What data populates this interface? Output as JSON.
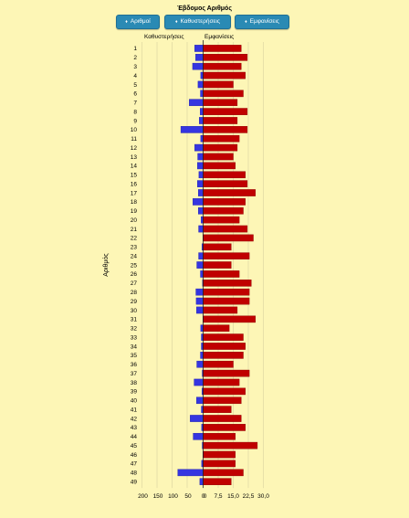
{
  "title": "Έβδομος Αριθμός",
  "buttons": [
    {
      "label": "Αριθμοί",
      "icon": "sort-icon"
    },
    {
      "label": "Καθυστερήσεις",
      "icon": "sort-icon"
    },
    {
      "label": "Εμφανίσεις",
      "icon": "sort-icon"
    }
  ],
  "chart_data": {
    "type": "bar",
    "orientation": "horizontal",
    "title": "Έβδομος Αριθμός",
    "ylabel": "Αριθμός",
    "left_header": "Καθυστερήσεις",
    "right_header": "Εμφανίσεις",
    "categories": [
      "1",
      "2",
      "3",
      "4",
      "5",
      "6",
      "7",
      "8",
      "9",
      "10",
      "11",
      "12",
      "13",
      "14",
      "15",
      "16",
      "17",
      "18",
      "19",
      "20",
      "21",
      "22",
      "23",
      "24",
      "25",
      "26",
      "27",
      "28",
      "29",
      "30",
      "31",
      "32",
      "33",
      "34",
      "35",
      "36",
      "37",
      "38",
      "39",
      "40",
      "41",
      "42",
      "43",
      "44",
      "45",
      "46",
      "47",
      "48",
      "49"
    ],
    "series": [
      {
        "name": "Καθυστερήσεις",
        "color": "#3535e0",
        "values": [
          28,
          25,
          35,
          8,
          17,
          9,
          46,
          10,
          13,
          74,
          8,
          28,
          18,
          19,
          14,
          19,
          16,
          34,
          16,
          7,
          15,
          1,
          4,
          15,
          21,
          9,
          2,
          24,
          23,
          22,
          1,
          8,
          6,
          6,
          9,
          21,
          3,
          30,
          4,
          22,
          6,
          43,
          5,
          33,
          3,
          1,
          5,
          84,
          11
        ]
      },
      {
        "name": "Εμφανίσεις",
        "color": "#c00000",
        "values": [
          19,
          22,
          19,
          21,
          15,
          20,
          17,
          22,
          17,
          22,
          18,
          17,
          15,
          16,
          21,
          22,
          26,
          21,
          20,
          18,
          22,
          25,
          14,
          23,
          14,
          18,
          24,
          23,
          23,
          17,
          26,
          13,
          20,
          21,
          20,
          15,
          23,
          18,
          21,
          19,
          14,
          19,
          21,
          16,
          27,
          16,
          16,
          20,
          14
        ]
      }
    ],
    "left_axis": {
      "ticks": [
        "200",
        "150",
        "100",
        "50",
        "0"
      ],
      "max": 200
    },
    "right_axis": {
      "ticks": [
        "0",
        "7,5",
        "15,0",
        "22,5",
        "30,0"
      ],
      "max": 30
    }
  }
}
